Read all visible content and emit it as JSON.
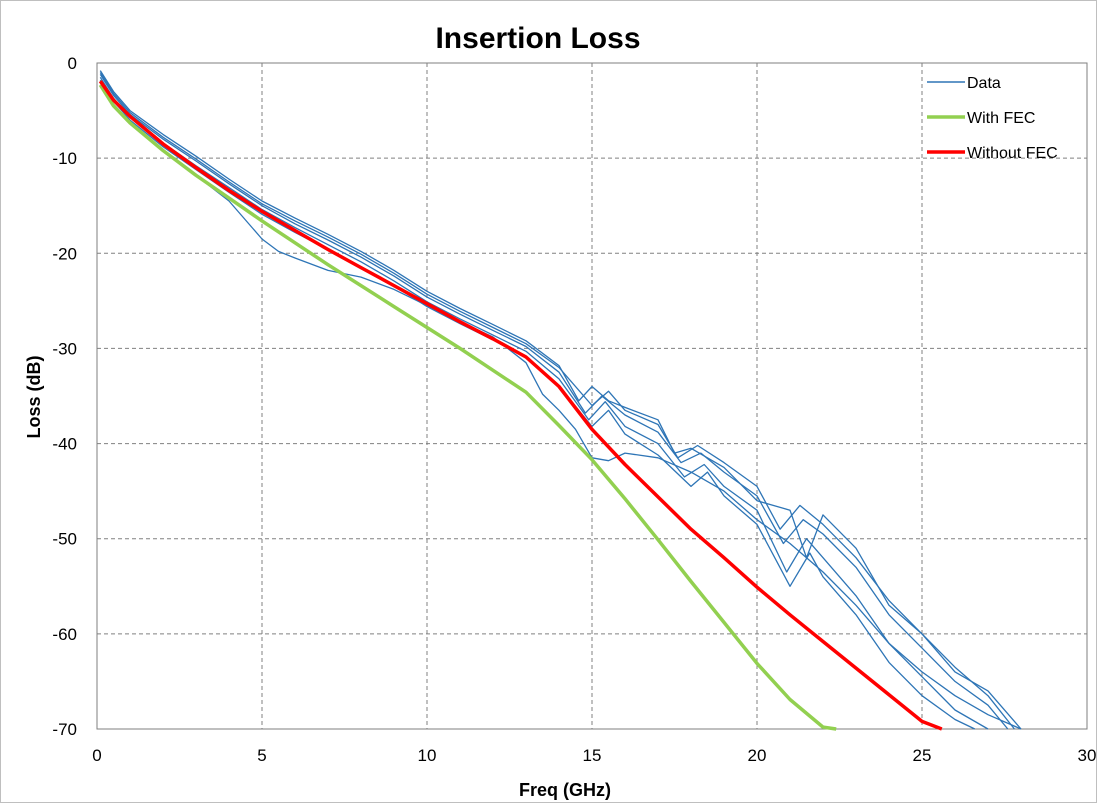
{
  "chart_data": {
    "type": "line",
    "title": "Insertion Loss",
    "xlabel": "Freq (GHz)",
    "ylabel": "Loss (dB)",
    "xlim": [
      0,
      30
    ],
    "ylim": [
      -70,
      0
    ],
    "xticks": [
      0,
      5,
      10,
      15,
      20,
      25,
      30
    ],
    "yticks": [
      0,
      -10,
      -20,
      -30,
      -40,
      -50,
      -60,
      -70
    ],
    "grid": true,
    "legend_position": "top-right",
    "legend": [
      "Data",
      "With FEC",
      "Without FEC"
    ],
    "series": [
      {
        "name": "With FEC",
        "color": "#92d050",
        "x": [
          0.1,
          0.5,
          1,
          2,
          3,
          4,
          5,
          6,
          7,
          8,
          9,
          10,
          11,
          12,
          13,
          14,
          15,
          16,
          17,
          18,
          19,
          20,
          21,
          22,
          22.4
        ],
        "y": [
          -2.3,
          -4.5,
          -6.3,
          -9.2,
          -11.8,
          -14.2,
          -16.6,
          -18.9,
          -21.2,
          -23.4,
          -25.6,
          -27.8,
          -30.0,
          -32.3,
          -34.6,
          -38.1,
          -41.7,
          -45.8,
          -50.1,
          -54.5,
          -58.8,
          -63.1,
          -66.9,
          -69.8,
          -70.0
        ]
      },
      {
        "name": "Without FEC",
        "color": "#ff0000",
        "x": [
          0.1,
          0.5,
          1,
          2,
          3,
          4,
          5,
          6,
          7,
          8,
          9,
          10,
          11,
          12,
          13,
          14,
          15,
          16,
          17,
          18,
          19,
          20,
          21,
          22,
          23,
          24,
          25,
          25.6
        ],
        "y": [
          -1.9,
          -3.9,
          -5.6,
          -8.5,
          -11.0,
          -13.4,
          -15.6,
          -17.6,
          -19.6,
          -21.5,
          -23.4,
          -25.3,
          -27.2,
          -29.0,
          -30.9,
          -34.0,
          -38.5,
          -42.2,
          -45.6,
          -49.0,
          -52.0,
          -55.1,
          -58.0,
          -60.8,
          -63.6,
          -66.4,
          -69.2,
          -70.0
        ]
      },
      {
        "name": "Data",
        "color": "#2e75b6",
        "traces": [
          {
            "x": [
              0.1,
              0.5,
              1,
              2,
              3,
              4,
              5,
              6,
              7,
              8,
              9,
              10,
              11,
              12,
              13,
              14,
              14.6,
              15,
              15.5,
              16,
              17,
              17.5,
              18,
              19,
              20,
              21,
              21.5,
              22,
              23,
              24,
              25,
              26,
              27,
              28
            ],
            "y": [
              -0.8,
              -3.0,
              -5.0,
              -7.5,
              -9.8,
              -12.2,
              -14.5,
              -16.3,
              -18.0,
              -19.8,
              -21.8,
              -24.0,
              -25.8,
              -27.5,
              -29.2,
              -31.8,
              -35.5,
              -34.0,
              -35.5,
              -36.2,
              -37.5,
              -41.0,
              -40.5,
              -42.5,
              -46.0,
              -47.0,
              -52.0,
              -47.5,
              -51.0,
              -57.0,
              -60.0,
              -64.0,
              -66.0,
              -70.0
            ]
          },
          {
            "x": [
              0.1,
              0.5,
              1,
              2,
              3,
              4,
              5,
              6,
              7,
              8,
              9,
              10,
              11,
              12,
              13,
              14,
              14.8,
              15.3,
              16,
              17,
              17.7,
              18.3,
              19,
              20,
              20.8,
              21.4,
              22,
              23,
              24,
              25,
              26,
              27,
              27.6
            ],
            "y": [
              -1.2,
              -3.4,
              -5.4,
              -8.0,
              -10.3,
              -12.7,
              -15.0,
              -16.9,
              -18.6,
              -20.4,
              -22.4,
              -24.6,
              -26.4,
              -28.1,
              -29.8,
              -32.5,
              -36.8,
              -35.0,
              -37.0,
              -38.8,
              -42.0,
              -41.0,
              -43.0,
              -45.5,
              -50.5,
              -48.0,
              -49.5,
              -53.0,
              -58.0,
              -61.5,
              -65.0,
              -67.5,
              -70.0
            ]
          },
          {
            "x": [
              0.1,
              0.5,
              1,
              2,
              3,
              4,
              5,
              6,
              7,
              8,
              9,
              10,
              11,
              12,
              13,
              14,
              14.9,
              15.4,
              16,
              17,
              17.8,
              18.4,
              19,
              20,
              20.9,
              21.5,
              22,
              23,
              24,
              25,
              26,
              27
            ],
            "y": [
              -1.5,
              -3.7,
              -5.7,
              -8.4,
              -10.8,
              -13.1,
              -15.4,
              -17.3,
              -19.1,
              -20.9,
              -22.9,
              -25.1,
              -26.9,
              -28.6,
              -30.3,
              -33.2,
              -37.5,
              -35.6,
              -38.2,
              -40.0,
              -43.5,
              -42.2,
              -44.5,
              -47.0,
              -53.5,
              -50.0,
              -52.0,
              -56.0,
              -61.0,
              -64.5,
              -68.0,
              -70.0
            ]
          },
          {
            "x": [
              0.1,
              0.5,
              1,
              2,
              3,
              4,
              5,
              6,
              7,
              8,
              9,
              10,
              11,
              12,
              13,
              14,
              15,
              15.5,
              16,
              17,
              18,
              18.5,
              19,
              20,
              21,
              21.6,
              22,
              23,
              24,
              25,
              26,
              26.6
            ],
            "y": [
              -1.8,
              -4.0,
              -6.0,
              -8.8,
              -11.2,
              -13.6,
              -15.9,
              -17.8,
              -19.6,
              -21.4,
              -23.4,
              -25.6,
              -27.4,
              -29.1,
              -30.8,
              -34.0,
              -38.2,
              -36.5,
              -39.0,
              -41.2,
              -44.5,
              -43.0,
              -45.5,
              -48.5,
              -55.0,
              -51.5,
              -54.0,
              -58.0,
              -63.0,
              -66.5,
              -69.0,
              -70.0
            ]
          },
          {
            "x": [
              0.1,
              0.5,
              1,
              2,
              3,
              4,
              4.5,
              5,
              5.5,
              6,
              7,
              8,
              9,
              10,
              11,
              12,
              13,
              13.5,
              14,
              14.5,
              15,
              15.5,
              16,
              17,
              18,
              19,
              20,
              21,
              22,
              23,
              24,
              25,
              26,
              27,
              28
            ],
            "y": [
              -2.1,
              -4.3,
              -6.3,
              -9.2,
              -11.8,
              -14.5,
              -16.5,
              -18.5,
              -19.8,
              -20.5,
              -21.8,
              -22.5,
              -23.8,
              -25.5,
              -27.2,
              -28.8,
              -31.5,
              -34.8,
              -36.5,
              -38.5,
              -41.5,
              -41.8,
              -41.0,
              -41.5,
              -43.0,
              -45.0,
              -48.0,
              -50.5,
              -53.5,
              -57.0,
              -61.0,
              -64.0,
              -66.5,
              -68.5,
              -70.0
            ]
          },
          {
            "x": [
              0.1,
              0.5,
              1,
              2,
              3,
              4,
              5,
              6,
              7,
              8,
              9,
              10,
              11,
              12,
              13,
              14,
              15,
              15.5,
              16,
              17,
              17.6,
              18.2,
              19,
              20,
              20.7,
              21.3,
              22,
              23,
              24,
              25,
              26,
              27,
              27.8
            ],
            "y": [
              -1.0,
              -3.2,
              -5.2,
              -7.8,
              -10.1,
              -12.5,
              -14.8,
              -16.6,
              -18.3,
              -20.1,
              -22.1,
              -24.3,
              -26.1,
              -27.8,
              -29.5,
              -32.0,
              -36.0,
              -34.5,
              -36.5,
              -38.0,
              -41.5,
              -40.2,
              -42.0,
              -44.5,
              -49.0,
              -46.5,
              -48.5,
              -52.0,
              -56.5,
              -60.0,
              -63.5,
              -66.5,
              -70.0
            ]
          }
        ]
      }
    ]
  }
}
